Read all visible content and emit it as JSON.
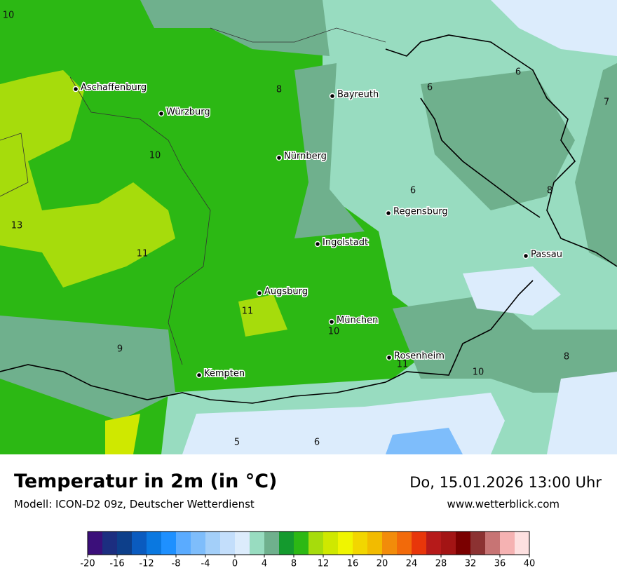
{
  "header": {
    "title": "Temperatur in 2m (in °C)",
    "subtitle": "Modell: ICON-D2 09z, Deutscher Wetterdienst",
    "datetime": "Do, 15.01.2026 13:00 Uhr",
    "website": "www.wetterblick.com"
  },
  "map": {
    "cities": [
      "Aschaffenburg",
      "Würzburg",
      "Bayreuth",
      "Nürnberg",
      "Regensburg",
      "Ingolstadt",
      "Passau",
      "Augsburg",
      "München",
      "Rosenheim",
      "Kempten"
    ],
    "contour_labels": [
      10,
      8,
      6,
      6,
      7,
      10,
      6,
      8,
      13,
      11,
      11,
      10,
      9,
      11,
      10,
      8,
      5,
      6
    ]
  },
  "colorbar": {
    "range": [
      -20,
      40
    ],
    "ticks": [
      -20,
      -16,
      -12,
      -8,
      -4,
      0,
      4,
      8,
      12,
      16,
      20,
      24,
      28,
      32,
      36,
      40
    ],
    "colors": [
      "#3b0f7a",
      "#1c2e80",
      "#0d3f8a",
      "#0a5bbf",
      "#0a78e0",
      "#1e90ff",
      "#5aabff",
      "#7ebdfb",
      "#a3cff9",
      "#c3defb",
      "#dcecfc",
      "#98dcc0",
      "#6fb08d",
      "#149a2e",
      "#2cb814",
      "#a6dc0c",
      "#cfe800",
      "#f0f500",
      "#f2d600",
      "#f2bb00",
      "#f28c0a",
      "#f26a0a",
      "#e8360a",
      "#b61a1a",
      "#a31414",
      "#7a0000",
      "#8c3232",
      "#c77474",
      "#f5b2b2",
      "#fde0e0"
    ]
  }
}
